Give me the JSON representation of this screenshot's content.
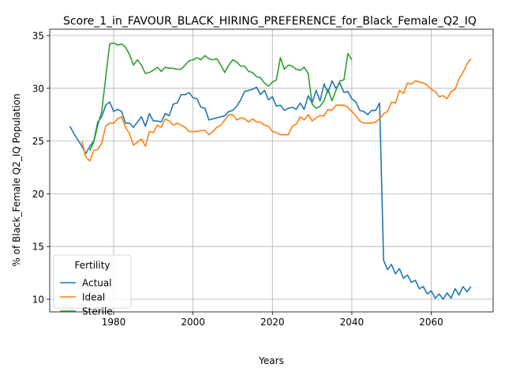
{
  "chart_data": {
    "type": "line",
    "title": "Score_1_in_FAVOUR_BLACK_HIRING_PREFERENCE_for_Black_Female_Q2_IQ",
    "xlabel": "Years",
    "ylabel": "% of Black_Female Q2_IQ Population",
    "xlim": [
      1963.9,
      2075.6
    ],
    "ylim": [
      8.8,
      35.6
    ],
    "xticks": [
      1980,
      2000,
      2020,
      2040,
      2060
    ],
    "yticks": [
      10,
      15,
      20,
      25,
      30,
      35
    ],
    "grid": true,
    "legend": {
      "title": "Fertility",
      "placement": "lower-left"
    },
    "series": [
      {
        "name": "Actual",
        "color": "#1f77b4",
        "x": [
          1969,
          1970,
          1971,
          1972,
          1973,
          1974,
          1975,
          1976,
          1977,
          1978,
          1979,
          1980,
          1981,
          1982,
          1983,
          1984,
          1985,
          1986,
          1987,
          1988,
          1989,
          1990,
          1991,
          1992,
          1993,
          1994,
          1995,
          1996,
          1997,
          1998,
          1999,
          2000,
          2001,
          2002,
          2003,
          2004,
          2005,
          2006,
          2007,
          2008,
          2009,
          2010,
          2011,
          2012,
          2013,
          2014,
          2015,
          2016,
          2017,
          2018,
          2019,
          2020,
          2021,
          2022,
          2023,
          2024,
          2025,
          2026,
          2027,
          2028,
          2029,
          2030,
          2031,
          2032,
          2033,
          2034,
          2035,
          2036,
          2037,
          2038,
          2039,
          2040,
          2041,
          2042,
          2043,
          2044,
          2045,
          2046,
          2047,
          2048,
          2049,
          2050,
          2051,
          2052,
          2053,
          2054,
          2055,
          2056,
          2057,
          2058,
          2059,
          2060,
          2061,
          2062,
          2063,
          2064,
          2065,
          2066,
          2067,
          2068,
          2069,
          2070
        ],
        "values": [
          26.4,
          25.7,
          25.1,
          24.5,
          23.8,
          24.5,
          25.0,
          26.8,
          27.3,
          28.4,
          28.7,
          27.8,
          28.0,
          27.8,
          26.7,
          26.7,
          26.3,
          26.8,
          27.3,
          26.4,
          27.6,
          26.9,
          26.9,
          26.8,
          27.6,
          27.4,
          28.5,
          28.6,
          29.4,
          29.4,
          29.6,
          29.1,
          29.0,
          28.2,
          28.1,
          27.0,
          27.1,
          27.2,
          27.3,
          27.4,
          27.8,
          27.9,
          28.3,
          28.9,
          29.7,
          29.8,
          29.9,
          30.1,
          29.4,
          29.8,
          28.9,
          29.2,
          28.3,
          28.4,
          27.9,
          28.1,
          28.2,
          28.0,
          28.6,
          28.0,
          29.3,
          28.6,
          29.8,
          28.8,
          30.4,
          29.6,
          30.7,
          30.0,
          30.5,
          29.6,
          29.7,
          29.0,
          28.7,
          27.9,
          27.8,
          27.5,
          27.9,
          27.9,
          28.6,
          13.7,
          12.8,
          13.3,
          12.4,
          12.9,
          12.0,
          12.3,
          11.6,
          11.8,
          11.0,
          11.2,
          10.5,
          10.8,
          10.1,
          10.5,
          10.0,
          10.6,
          10.1,
          11.0,
          10.4,
          11.2,
          10.7,
          11.2
        ]
      },
      {
        "name": "Ideal",
        "color": "#ff7f0e",
        "x": [
          1972,
          1973,
          1974,
          1975,
          1976,
          1977,
          1978,
          1979,
          1980,
          1981,
          1982,
          1983,
          1984,
          1985,
          1986,
          1987,
          1988,
          1989,
          1990,
          1991,
          1992,
          1993,
          1994,
          1995,
          1996,
          1997,
          1998,
          1999,
          2000,
          2001,
          2002,
          2003,
          2004,
          2005,
          2006,
          2007,
          2008,
          2009,
          2010,
          2011,
          2012,
          2013,
          2014,
          2015,
          2016,
          2017,
          2018,
          2019,
          2020,
          2021,
          2022,
          2023,
          2024,
          2025,
          2026,
          2027,
          2028,
          2029,
          2030,
          2031,
          2032,
          2033,
          2034,
          2035,
          2036,
          2037,
          2038,
          2039,
          2040,
          2041,
          2042,
          2043,
          2044,
          2045,
          2046,
          2047,
          2048,
          2049,
          2050,
          2051,
          2052,
          2053,
          2054,
          2055,
          2056,
          2057,
          2058,
          2059,
          2060,
          2061,
          2062,
          2063,
          2064,
          2065,
          2066,
          2067,
          2068,
          2069,
          2070
        ],
        "values": [
          25.0,
          23.5,
          23.1,
          24.1,
          24.2,
          24.8,
          26.4,
          26.7,
          26.7,
          27.1,
          27.3,
          26.3,
          25.7,
          24.6,
          24.9,
          25.2,
          24.5,
          25.9,
          25.8,
          26.5,
          26.3,
          27.1,
          26.9,
          26.5,
          26.7,
          26.5,
          26.3,
          25.9,
          25.9,
          25.9,
          26.0,
          26.0,
          25.6,
          25.9,
          26.3,
          26.5,
          27.0,
          27.5,
          27.5,
          27.0,
          27.2,
          27.1,
          26.8,
          27.1,
          26.8,
          26.8,
          26.5,
          26.4,
          25.9,
          25.8,
          25.6,
          25.6,
          25.6,
          26.4,
          26.6,
          27.3,
          27.0,
          27.5,
          26.9,
          27.2,
          27.4,
          27.4,
          28.0,
          27.9,
          28.4,
          28.4,
          28.4,
          28.2,
          27.8,
          27.4,
          26.9,
          26.7,
          26.7,
          26.7,
          26.8,
          27.1,
          27.6,
          27.8,
          28.7,
          28.6,
          29.8,
          29.5,
          30.5,
          30.4,
          30.7,
          30.6,
          30.5,
          30.3,
          29.9,
          29.7,
          29.2,
          29.3,
          29.0,
          29.7,
          29.9,
          30.9,
          31.5,
          32.3,
          32.8
        ]
      },
      {
        "name": "Sterile",
        "color": "#2ca02c",
        "x": [
          1974,
          1975,
          1976,
          1977,
          1978,
          1979,
          1980,
          1981,
          1982,
          1983,
          1984,
          1985,
          1986,
          1987,
          1988,
          1989,
          1990,
          1991,
          1992,
          1993,
          1994,
          1995,
          1996,
          1997,
          1998,
          1999,
          2000,
          2001,
          2002,
          2003,
          2004,
          2005,
          2006,
          2007,
          2008,
          2009,
          2010,
          2011,
          2012,
          2013,
          2014,
          2015,
          2016,
          2017,
          2018,
          2019,
          2020,
          2021,
          2022,
          2023,
          2024,
          2025,
          2026,
          2027,
          2028,
          2029,
          2030,
          2031,
          2032,
          2033,
          2034,
          2035,
          2036,
          2037,
          2038,
          2039,
          2040
        ],
        "values": [
          24.1,
          24.9,
          26.5,
          27.8,
          31.0,
          34.2,
          34.3,
          34.1,
          34.2,
          33.9,
          33.2,
          32.2,
          32.7,
          32.2,
          31.4,
          31.5,
          31.7,
          32.0,
          31.6,
          32.0,
          31.9,
          31.9,
          31.8,
          31.8,
          32.2,
          32.6,
          32.7,
          32.9,
          32.7,
          33.1,
          32.8,
          32.7,
          32.8,
          32.2,
          31.5,
          32.2,
          32.7,
          32.5,
          32.1,
          32.1,
          31.6,
          31.5,
          31.1,
          31.0,
          30.5,
          30.2,
          30.6,
          30.8,
          32.9,
          31.8,
          32.2,
          32.1,
          31.8,
          31.7,
          32.0,
          31.4,
          28.5,
          28.1,
          28.3,
          28.8,
          29.9,
          28.8,
          29.8,
          30.7,
          30.8,
          33.3,
          32.7
        ]
      }
    ]
  }
}
